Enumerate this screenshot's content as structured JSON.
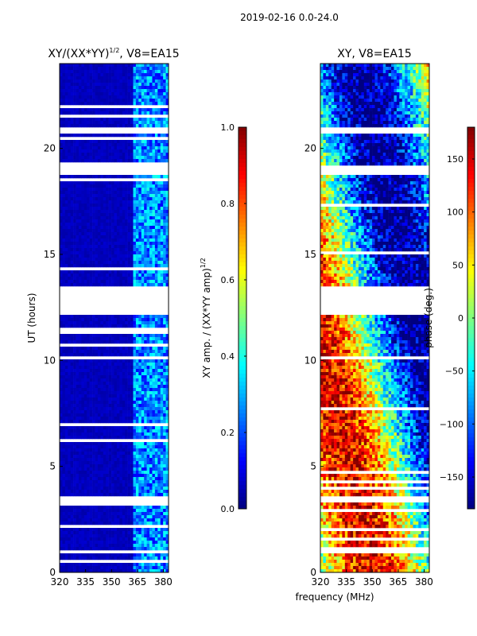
{
  "suptitle": "2019-02-16 0.0-24.0",
  "chart_data": [
    {
      "type": "heatmap",
      "title": "XY/(XX*YY)",
      "title_exponent": "1/2",
      "title_suffix": ", V8=EA15",
      "xlabel": "",
      "ylabel": "UT (hours)",
      "xlim": [
        320,
        383
      ],
      "ylim": [
        0,
        24
      ],
      "xticks": [
        320,
        335,
        350,
        365,
        380
      ],
      "yticks": [
        0,
        5,
        10,
        15,
        20
      ],
      "gaps_hours": [
        [
          12.1,
          13.5
        ],
        [
          18.8,
          19.2
        ],
        [
          20.7,
          21.0
        ],
        [
          3.3,
          3.6
        ],
        [
          0.95,
          1.1
        ]
      ],
      "colorbar": {
        "label": "XY amp. / (XX*YY amp)",
        "label_exponent": "1/2",
        "range": [
          0.0,
          1.0
        ],
        "ticks": [
          "0.0",
          "0.2",
          "0.4",
          "0.6",
          "0.8",
          "1.0"
        ],
        "colormap": "jet"
      }
    },
    {
      "type": "heatmap",
      "title": "XY, V8=EA15",
      "xlabel": "frequency (MHz)",
      "ylabel": "",
      "xlim": [
        320,
        383
      ],
      "ylim": [
        0,
        24
      ],
      "xticks": [
        320,
        335,
        350,
        365,
        380
      ],
      "yticks": [
        0,
        5,
        10,
        15,
        20
      ],
      "gaps_hours": [
        [
          12.1,
          13.5
        ],
        [
          18.8,
          19.2
        ],
        [
          20.7,
          21.0
        ],
        [
          3.3,
          3.6
        ],
        [
          0.95,
          1.1
        ]
      ],
      "colorbar": {
        "label": "phase (deg.)",
        "range": [
          -180,
          180
        ],
        "ticks": [
          "−150",
          "−100",
          "−50",
          "0",
          "50",
          "100",
          "150"
        ],
        "tick_values": [
          -150,
          -100,
          -50,
          0,
          50,
          100,
          150
        ],
        "colormap": "jet"
      }
    }
  ]
}
